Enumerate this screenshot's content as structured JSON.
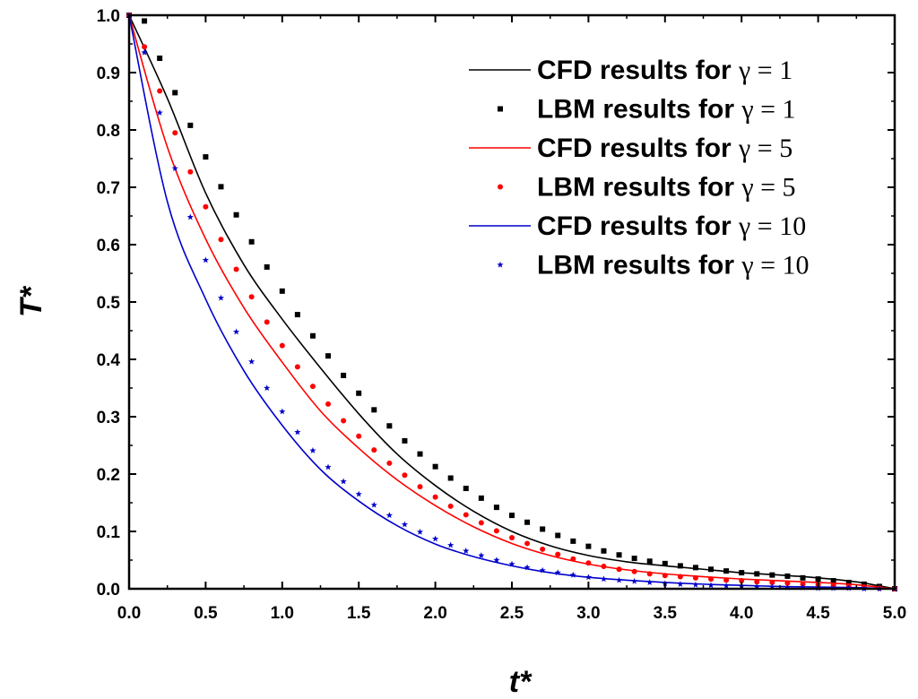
{
  "chart_data": {
    "type": "line",
    "title": "",
    "xlabel": "t*",
    "ylabel": "T*",
    "xlim": [
      0.0,
      5.0
    ],
    "ylim": [
      0.0,
      1.0
    ],
    "xticks": [
      "0.0",
      "0.5",
      "1.0",
      "1.5",
      "2.0",
      "2.5",
      "3.0",
      "3.5",
      "4.0",
      "4.5",
      "5.0"
    ],
    "yticks": [
      "0.0",
      "0.1",
      "0.2",
      "0.3",
      "0.4",
      "0.5",
      "0.6",
      "0.7",
      "0.8",
      "0.9",
      "1.0"
    ],
    "grid": false,
    "legend_position": "top-right",
    "series": [
      {
        "name": "CFD results for γ = 1",
        "label_text": "CFD results for",
        "label_math": "γ = 1",
        "kind": "line",
        "color": "#000000",
        "x": [
          0.0,
          0.25,
          0.5,
          0.75,
          1.0,
          1.25,
          1.5,
          1.75,
          2.0,
          2.25,
          2.5,
          2.75,
          3.0,
          3.25,
          3.5,
          3.75,
          4.0,
          4.25,
          4.5,
          4.75,
          5.0
        ],
        "y": [
          1.0,
          0.855,
          0.69,
          0.565,
          0.47,
          0.385,
          0.305,
          0.235,
          0.18,
          0.135,
          0.1,
          0.075,
          0.058,
          0.047,
          0.04,
          0.034,
          0.028,
          0.024,
          0.019,
          0.012,
          0.0
        ]
      },
      {
        "name": "LBM results for γ = 1",
        "label_text": "LBM results for",
        "label_math": "γ = 1",
        "kind": "scatter",
        "marker": "square",
        "color": "#000000",
        "x": [
          0.0,
          0.1,
          0.2,
          0.3,
          0.4,
          0.5,
          0.6,
          0.7,
          0.8,
          0.9,
          1.0,
          1.1,
          1.2,
          1.3,
          1.4,
          1.5,
          1.6,
          1.7,
          1.8,
          1.9,
          2.0,
          2.1,
          2.2,
          2.3,
          2.4,
          2.5,
          2.6,
          2.7,
          2.8,
          2.9,
          3.0,
          3.1,
          3.2,
          3.3,
          3.4,
          3.5,
          3.6,
          3.7,
          3.8,
          3.9,
          4.0,
          4.1,
          4.2,
          4.3,
          4.4,
          4.5,
          4.6,
          4.7,
          4.8,
          4.9,
          5.0
        ],
        "y": [
          1.0,
          0.99,
          0.925,
          0.865,
          0.808,
          0.753,
          0.701,
          0.652,
          0.605,
          0.561,
          0.519,
          0.478,
          0.441,
          0.406,
          0.372,
          0.341,
          0.312,
          0.284,
          0.258,
          0.235,
          0.213,
          0.193,
          0.175,
          0.158,
          0.142,
          0.128,
          0.116,
          0.104,
          0.093,
          0.083,
          0.074,
          0.066,
          0.059,
          0.053,
          0.048,
          0.044,
          0.04,
          0.037,
          0.034,
          0.031,
          0.028,
          0.026,
          0.024,
          0.022,
          0.019,
          0.017,
          0.014,
          0.011,
          0.008,
          0.004,
          0.0
        ]
      },
      {
        "name": "CFD results for γ = 5",
        "label_text": "CFD results for",
        "label_math": "γ = 5",
        "kind": "line",
        "color": "#ff0000",
        "x": [
          0.0,
          0.25,
          0.5,
          0.75,
          1.0,
          1.25,
          1.5,
          1.75,
          2.0,
          2.25,
          2.5,
          2.75,
          3.0,
          3.25,
          3.5,
          3.75,
          4.0,
          4.25,
          4.5,
          4.75,
          5.0
        ],
        "y": [
          1.0,
          0.77,
          0.61,
          0.49,
          0.395,
          0.31,
          0.245,
          0.19,
          0.145,
          0.108,
          0.079,
          0.058,
          0.043,
          0.033,
          0.026,
          0.021,
          0.017,
          0.014,
          0.011,
          0.007,
          0.0
        ]
      },
      {
        "name": "LBM results for γ = 5",
        "label_text": "LBM results for",
        "label_math": "γ = 5",
        "kind": "scatter",
        "marker": "circle",
        "color": "#ff0000",
        "x": [
          0.0,
          0.1,
          0.2,
          0.3,
          0.4,
          0.5,
          0.6,
          0.7,
          0.8,
          0.9,
          1.0,
          1.1,
          1.2,
          1.3,
          1.4,
          1.5,
          1.6,
          1.7,
          1.8,
          1.9,
          2.0,
          2.1,
          2.2,
          2.3,
          2.4,
          2.5,
          2.6,
          2.7,
          2.8,
          2.9,
          3.0,
          3.1,
          3.2,
          3.3,
          3.4,
          3.5,
          3.6,
          3.7,
          3.8,
          3.9,
          4.0,
          4.1,
          4.2,
          4.3,
          4.4,
          4.5,
          4.6,
          4.7,
          4.8,
          4.9,
          5.0
        ],
        "y": [
          1.0,
          0.945,
          0.868,
          0.795,
          0.727,
          0.666,
          0.609,
          0.557,
          0.509,
          0.465,
          0.424,
          0.387,
          0.353,
          0.322,
          0.293,
          0.266,
          0.242,
          0.219,
          0.198,
          0.178,
          0.16,
          0.144,
          0.129,
          0.115,
          0.101,
          0.089,
          0.079,
          0.069,
          0.06,
          0.052,
          0.045,
          0.039,
          0.034,
          0.03,
          0.026,
          0.023,
          0.021,
          0.019,
          0.017,
          0.015,
          0.014,
          0.012,
          0.011,
          0.01,
          0.008,
          0.007,
          0.006,
          0.004,
          0.003,
          0.001,
          0.0
        ]
      },
      {
        "name": "CFD results for γ = 10",
        "label_text": "CFD results for",
        "label_math": "γ = 10",
        "kind": "line",
        "color": "#0000cc",
        "x": [
          0.0,
          0.25,
          0.5,
          0.75,
          1.0,
          1.25,
          1.5,
          1.75,
          2.0,
          2.25,
          2.5,
          2.75,
          3.0,
          3.25,
          3.5,
          3.75,
          4.0,
          4.25,
          4.5,
          4.75,
          5.0
        ],
        "y": [
          1.0,
          0.675,
          0.505,
          0.38,
          0.285,
          0.208,
          0.153,
          0.11,
          0.078,
          0.056,
          0.04,
          0.028,
          0.02,
          0.015,
          0.011,
          0.008,
          0.006,
          0.004,
          0.003,
          0.002,
          0.0
        ]
      },
      {
        "name": "LBM results for γ = 10",
        "label_text": "LBM results for",
        "label_math": "γ = 10",
        "kind": "scatter",
        "marker": "star",
        "color": "#0000cc",
        "x": [
          0.0,
          0.1,
          0.2,
          0.3,
          0.4,
          0.5,
          0.6,
          0.7,
          0.8,
          0.9,
          1.0,
          1.1,
          1.2,
          1.3,
          1.4,
          1.5,
          1.6,
          1.7,
          1.8,
          1.9,
          2.0,
          2.1,
          2.2,
          2.3,
          2.4,
          2.5,
          2.6,
          2.7,
          2.8,
          2.9,
          3.0,
          3.1,
          3.2,
          3.3,
          3.4,
          3.5,
          3.6,
          3.7,
          3.8,
          3.9,
          4.0,
          4.1,
          4.2,
          4.3,
          4.4,
          4.5,
          4.6,
          4.7,
          4.8,
          4.9,
          5.0
        ],
        "y": [
          1.0,
          0.935,
          0.83,
          0.733,
          0.648,
          0.573,
          0.507,
          0.448,
          0.396,
          0.35,
          0.309,
          0.273,
          0.241,
          0.212,
          0.187,
          0.165,
          0.146,
          0.128,
          0.112,
          0.099,
          0.087,
          0.076,
          0.066,
          0.058,
          0.05,
          0.043,
          0.037,
          0.032,
          0.028,
          0.024,
          0.02,
          0.017,
          0.015,
          0.013,
          0.011,
          0.009,
          0.008,
          0.007,
          0.006,
          0.005,
          0.004,
          0.003,
          0.003,
          0.002,
          0.002,
          0.001,
          0.001,
          0.001,
          0.0,
          0.0,
          0.0
        ]
      }
    ]
  }
}
